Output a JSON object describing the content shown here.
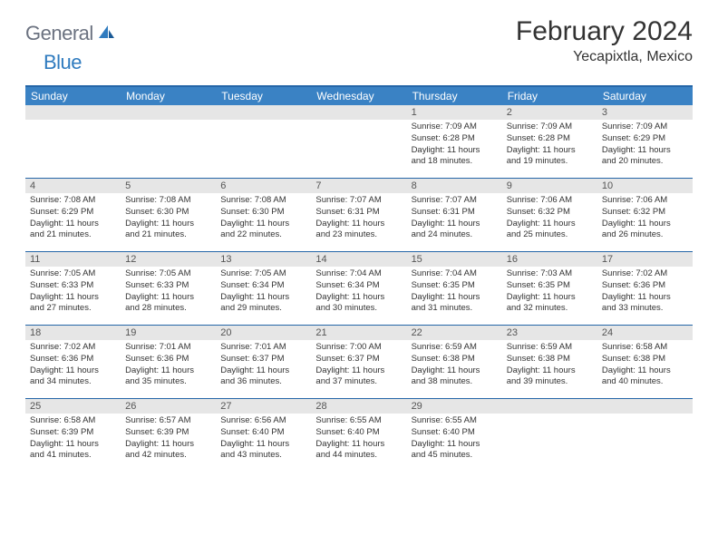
{
  "logo": {
    "text1": "General",
    "text2": "Blue"
  },
  "title": "February 2024",
  "location": "Yecapixtla, Mexico",
  "colors": {
    "header_bar": "#3a82c4",
    "header_border": "#2566a8",
    "daynum_bg": "#e6e6e6",
    "text": "#333333",
    "logo_gray": "#6b7280",
    "logo_blue": "#2f7bbf"
  },
  "day_names": [
    "Sunday",
    "Monday",
    "Tuesday",
    "Wednesday",
    "Thursday",
    "Friday",
    "Saturday"
  ],
  "weeks": [
    {
      "nums": [
        "",
        "",
        "",
        "",
        "1",
        "2",
        "3"
      ],
      "cells": [
        null,
        null,
        null,
        null,
        {
          "sunrise": "Sunrise: 7:09 AM",
          "sunset": "Sunset: 6:28 PM",
          "day1": "Daylight: 11 hours",
          "day2": "and 18 minutes."
        },
        {
          "sunrise": "Sunrise: 7:09 AM",
          "sunset": "Sunset: 6:28 PM",
          "day1": "Daylight: 11 hours",
          "day2": "and 19 minutes."
        },
        {
          "sunrise": "Sunrise: 7:09 AM",
          "sunset": "Sunset: 6:29 PM",
          "day1": "Daylight: 11 hours",
          "day2": "and 20 minutes."
        }
      ]
    },
    {
      "nums": [
        "4",
        "5",
        "6",
        "7",
        "8",
        "9",
        "10"
      ],
      "cells": [
        {
          "sunrise": "Sunrise: 7:08 AM",
          "sunset": "Sunset: 6:29 PM",
          "day1": "Daylight: 11 hours",
          "day2": "and 21 minutes."
        },
        {
          "sunrise": "Sunrise: 7:08 AM",
          "sunset": "Sunset: 6:30 PM",
          "day1": "Daylight: 11 hours",
          "day2": "and 21 minutes."
        },
        {
          "sunrise": "Sunrise: 7:08 AM",
          "sunset": "Sunset: 6:30 PM",
          "day1": "Daylight: 11 hours",
          "day2": "and 22 minutes."
        },
        {
          "sunrise": "Sunrise: 7:07 AM",
          "sunset": "Sunset: 6:31 PM",
          "day1": "Daylight: 11 hours",
          "day2": "and 23 minutes."
        },
        {
          "sunrise": "Sunrise: 7:07 AM",
          "sunset": "Sunset: 6:31 PM",
          "day1": "Daylight: 11 hours",
          "day2": "and 24 minutes."
        },
        {
          "sunrise": "Sunrise: 7:06 AM",
          "sunset": "Sunset: 6:32 PM",
          "day1": "Daylight: 11 hours",
          "day2": "and 25 minutes."
        },
        {
          "sunrise": "Sunrise: 7:06 AM",
          "sunset": "Sunset: 6:32 PM",
          "day1": "Daylight: 11 hours",
          "day2": "and 26 minutes."
        }
      ]
    },
    {
      "nums": [
        "11",
        "12",
        "13",
        "14",
        "15",
        "16",
        "17"
      ],
      "cells": [
        {
          "sunrise": "Sunrise: 7:05 AM",
          "sunset": "Sunset: 6:33 PM",
          "day1": "Daylight: 11 hours",
          "day2": "and 27 minutes."
        },
        {
          "sunrise": "Sunrise: 7:05 AM",
          "sunset": "Sunset: 6:33 PM",
          "day1": "Daylight: 11 hours",
          "day2": "and 28 minutes."
        },
        {
          "sunrise": "Sunrise: 7:05 AM",
          "sunset": "Sunset: 6:34 PM",
          "day1": "Daylight: 11 hours",
          "day2": "and 29 minutes."
        },
        {
          "sunrise": "Sunrise: 7:04 AM",
          "sunset": "Sunset: 6:34 PM",
          "day1": "Daylight: 11 hours",
          "day2": "and 30 minutes."
        },
        {
          "sunrise": "Sunrise: 7:04 AM",
          "sunset": "Sunset: 6:35 PM",
          "day1": "Daylight: 11 hours",
          "day2": "and 31 minutes."
        },
        {
          "sunrise": "Sunrise: 7:03 AM",
          "sunset": "Sunset: 6:35 PM",
          "day1": "Daylight: 11 hours",
          "day2": "and 32 minutes."
        },
        {
          "sunrise": "Sunrise: 7:02 AM",
          "sunset": "Sunset: 6:36 PM",
          "day1": "Daylight: 11 hours",
          "day2": "and 33 minutes."
        }
      ]
    },
    {
      "nums": [
        "18",
        "19",
        "20",
        "21",
        "22",
        "23",
        "24"
      ],
      "cells": [
        {
          "sunrise": "Sunrise: 7:02 AM",
          "sunset": "Sunset: 6:36 PM",
          "day1": "Daylight: 11 hours",
          "day2": "and 34 minutes."
        },
        {
          "sunrise": "Sunrise: 7:01 AM",
          "sunset": "Sunset: 6:36 PM",
          "day1": "Daylight: 11 hours",
          "day2": "and 35 minutes."
        },
        {
          "sunrise": "Sunrise: 7:01 AM",
          "sunset": "Sunset: 6:37 PM",
          "day1": "Daylight: 11 hours",
          "day2": "and 36 minutes."
        },
        {
          "sunrise": "Sunrise: 7:00 AM",
          "sunset": "Sunset: 6:37 PM",
          "day1": "Daylight: 11 hours",
          "day2": "and 37 minutes."
        },
        {
          "sunrise": "Sunrise: 6:59 AM",
          "sunset": "Sunset: 6:38 PM",
          "day1": "Daylight: 11 hours",
          "day2": "and 38 minutes."
        },
        {
          "sunrise": "Sunrise: 6:59 AM",
          "sunset": "Sunset: 6:38 PM",
          "day1": "Daylight: 11 hours",
          "day2": "and 39 minutes."
        },
        {
          "sunrise": "Sunrise: 6:58 AM",
          "sunset": "Sunset: 6:38 PM",
          "day1": "Daylight: 11 hours",
          "day2": "and 40 minutes."
        }
      ]
    },
    {
      "nums": [
        "25",
        "26",
        "27",
        "28",
        "29",
        "",
        ""
      ],
      "cells": [
        {
          "sunrise": "Sunrise: 6:58 AM",
          "sunset": "Sunset: 6:39 PM",
          "day1": "Daylight: 11 hours",
          "day2": "and 41 minutes."
        },
        {
          "sunrise": "Sunrise: 6:57 AM",
          "sunset": "Sunset: 6:39 PM",
          "day1": "Daylight: 11 hours",
          "day2": "and 42 minutes."
        },
        {
          "sunrise": "Sunrise: 6:56 AM",
          "sunset": "Sunset: 6:40 PM",
          "day1": "Daylight: 11 hours",
          "day2": "and 43 minutes."
        },
        {
          "sunrise": "Sunrise: 6:55 AM",
          "sunset": "Sunset: 6:40 PM",
          "day1": "Daylight: 11 hours",
          "day2": "and 44 minutes."
        },
        {
          "sunrise": "Sunrise: 6:55 AM",
          "sunset": "Sunset: 6:40 PM",
          "day1": "Daylight: 11 hours",
          "day2": "and 45 minutes."
        },
        null,
        null
      ]
    }
  ]
}
